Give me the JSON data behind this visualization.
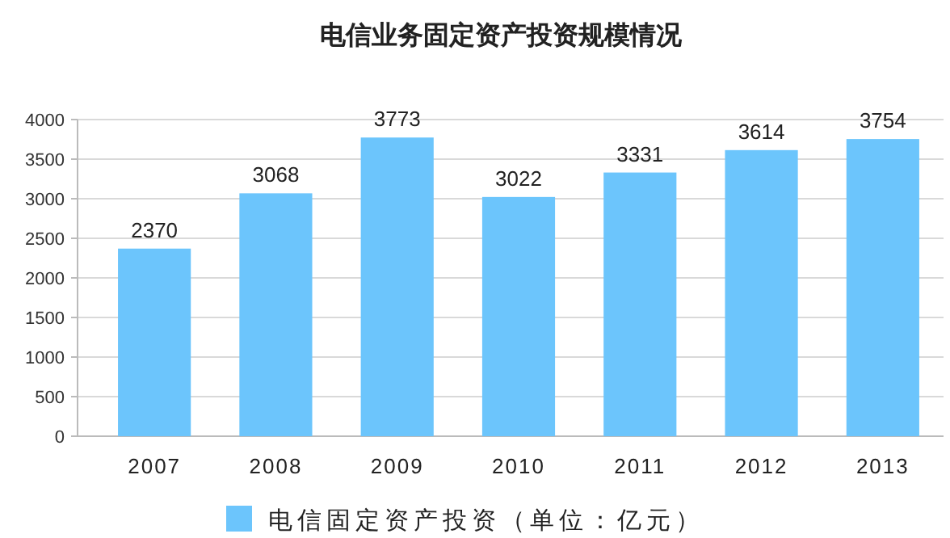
{
  "chart_data": {
    "type": "bar",
    "title": "电信业务固定资产投资规模情况",
    "categories": [
      "2007",
      "2008",
      "2009",
      "2010",
      "2011",
      "2012",
      "2013"
    ],
    "series": [
      {
        "name": "电信固定资产投资（单位：亿元）",
        "color": "#6cc5fc",
        "values": [
          2370,
          3068,
          3773,
          3022,
          3331,
          3614,
          3754
        ]
      }
    ],
    "ylim": [
      0,
      4000
    ],
    "yticks": [
      0,
      500,
      1000,
      1500,
      2000,
      2500,
      3000,
      3500,
      4000
    ],
    "grid": "y",
    "legend": "bottom",
    "data_labels": true
  }
}
